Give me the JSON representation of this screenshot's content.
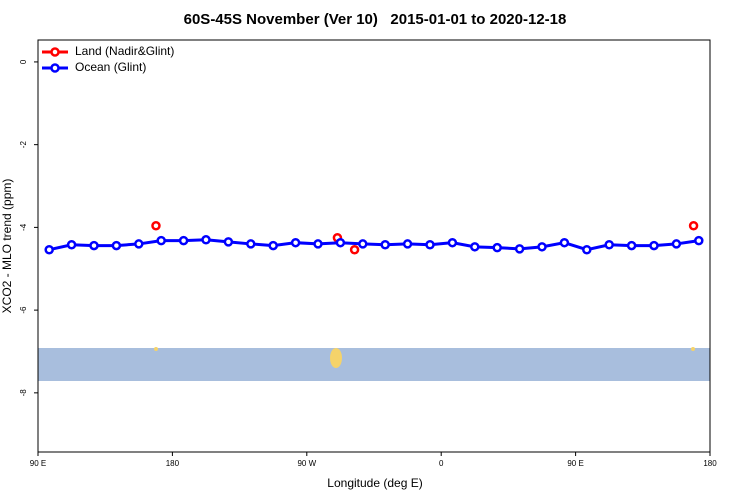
{
  "chart_data": {
    "type": "line",
    "title": "60S-45S November (Ver 10)   2015-01-01 to 2020-12-18",
    "xlabel": "Longitude (deg E)",
    "ylabel": "XCO2 - MLO trend (ppm)",
    "xlim": [
      90,
      540
    ],
    "xticks": [
      {
        "value": 90,
        "label": "90 E"
      },
      180,
      {
        "value": 270,
        "label": "90 W"
      },
      {
        "value": 360,
        "label": "0"
      },
      {
        "value": 450,
        "label": "90 E"
      },
      {
        "value": 540,
        "label": "180"
      }
    ],
    "ylim": [
      -9.43,
      0.53
    ],
    "yticks": [
      0,
      -2,
      -4,
      -6,
      -8
    ],
    "legend": "top-left",
    "series": [
      {
        "name": "Land (Nadir&Glint)",
        "color": "#ff0000",
        "line": false,
        "x": [
          169,
          290.5,
          302,
          529
        ],
        "values": [
          -3.96,
          -4.25,
          -4.54,
          -3.96
        ]
      },
      {
        "name": "Ocean (Glint)",
        "color": "#0000ff",
        "line": true,
        "x": [
          97.5,
          112.5,
          127.5,
          142.5,
          157.5,
          172.5,
          187.5,
          202.5,
          217.5,
          232.5,
          247.5,
          262.5,
          277.5,
          292.5,
          307.5,
          322.5,
          337.5,
          352.5,
          367.5,
          382.5,
          397.5,
          412.5,
          427.5,
          442.5,
          457.5,
          472.5,
          487.5,
          502.5,
          517.5,
          532.5
        ],
        "values": [
          -4.54,
          -4.42,
          -4.44,
          -4.44,
          -4.4,
          -4.32,
          -4.32,
          -4.3,
          -4.35,
          -4.4,
          -4.44,
          -4.37,
          -4.4,
          -4.37,
          -4.4,
          -4.42,
          -4.4,
          -4.42,
          -4.37,
          -4.47,
          -4.49,
          -4.52,
          -4.47,
          -4.37,
          -4.54,
          -4.42,
          -4.44,
          -4.44,
          -4.4,
          -4.32
        ]
      }
    ]
  }
}
